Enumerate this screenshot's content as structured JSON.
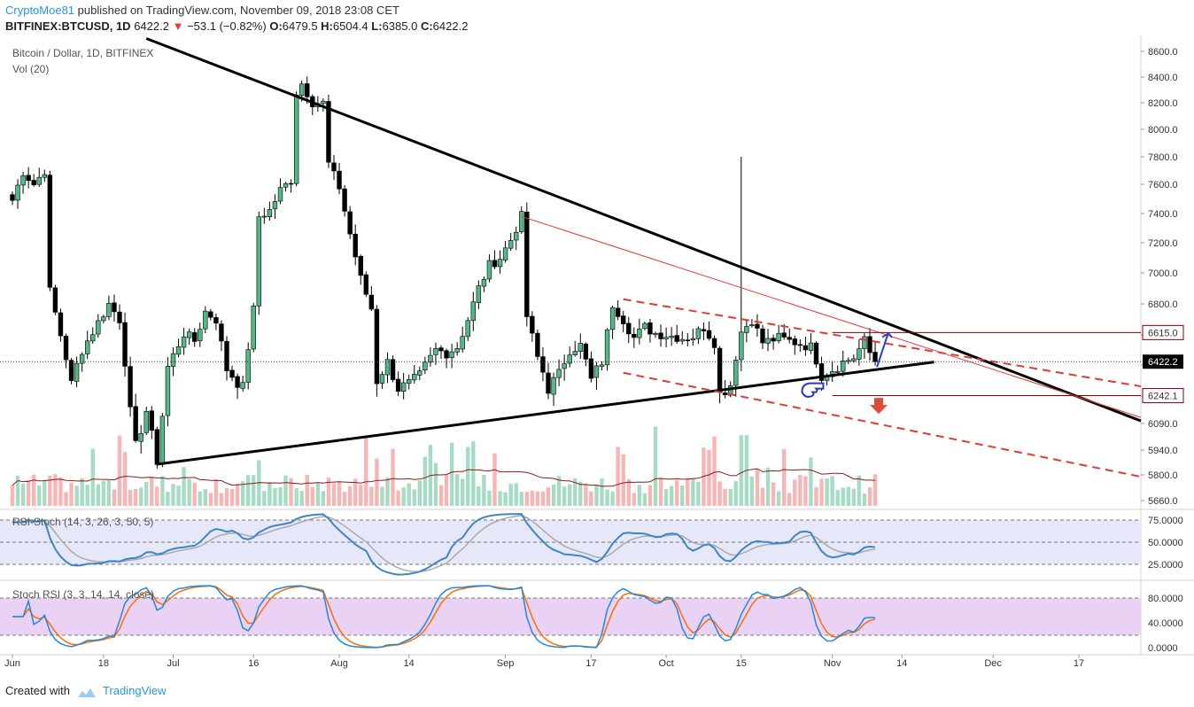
{
  "header": {
    "author": "CryptoMoe81",
    "published_text": "published on TradingView.com, November 09, 2018 23:08 CET"
  },
  "ticker": {
    "symbol": "BITFINEX:BTCUSD, 1D",
    "last": "6422.2",
    "change": "−53.1 (−0.82%)",
    "o_label": "O:",
    "o": "6479.5",
    "h_label": "H:",
    "h": "6504.4",
    "l_label": "L:",
    "l": "6385.0",
    "c_label": "C:",
    "c": "6422.2"
  },
  "footer": {
    "created_with": "Created with",
    "brand": "TradingView"
  },
  "colors": {
    "bull": "#53b987",
    "bear": "#000000",
    "trend_red": "#e53935",
    "trend_black": "#000000",
    "rsi_fill": "#e7e7fa",
    "stoch_fill": "#ead2f5",
    "k_line": "#3d85c6",
    "d_line": "#aaaaaa",
    "orange": "#ff6d00",
    "price_tag": "#000000",
    "level_tag": "#8b0000"
  },
  "chart_data": [
    {
      "type": "candlestick",
      "title": "Bitcoin / Dollar, 1D, BITFINEX",
      "subtitle": "Vol (20)",
      "price_axis": {
        "ticks": [
          "8600.0",
          "8400.0",
          "8200.0",
          "8000.0",
          "7800.0",
          "7600.0",
          "7400.0",
          "7200.0",
          "7000.0",
          "6800.0",
          "6600.0",
          "6400.0",
          "6240.0",
          "6090.0",
          "5940.0",
          "5800.0",
          "5660.0"
        ],
        "last_price_tag": "6422.2",
        "level_tags": [
          "6615.0",
          "6242.1"
        ]
      },
      "time_axis": {
        "ticks": [
          "Jun",
          "18",
          "Jul",
          "16",
          "Aug",
          "14",
          "Sep",
          "17",
          "Oct",
          "15",
          "Nov",
          "14",
          "Dec",
          "17"
        ]
      },
      "close_path": [
        [
          "2018-06-01",
          7490
        ],
        [
          "2018-06-03",
          7690
        ],
        [
          "2018-06-05",
          7600
        ],
        [
          "2018-06-07",
          7700
        ],
        [
          "2018-06-08",
          6880
        ],
        [
          "2018-06-10",
          6600
        ],
        [
          "2018-06-12",
          6300
        ],
        [
          "2018-06-14",
          6500
        ],
        [
          "2018-06-16",
          6620
        ],
        [
          "2018-06-19",
          6800
        ],
        [
          "2018-06-21",
          6700
        ],
        [
          "2018-06-23",
          6150
        ],
        [
          "2018-06-24",
          5960
        ],
        [
          "2018-06-26",
          6160
        ],
        [
          "2018-06-28",
          5880
        ],
        [
          "2018-06-30",
          6390
        ],
        [
          "2018-07-03",
          6610
        ],
        [
          "2018-07-05",
          6560
        ],
        [
          "2018-07-07",
          6750
        ],
        [
          "2018-07-09",
          6700
        ],
        [
          "2018-07-11",
          6380
        ],
        [
          "2018-07-14",
          6280
        ],
        [
          "2018-07-16",
          6760
        ],
        [
          "2018-07-17",
          7380
        ],
        [
          "2018-07-19",
          7420
        ],
        [
          "2018-07-21",
          7560
        ],
        [
          "2018-07-23",
          7630
        ],
        [
          "2018-07-24",
          8280
        ],
        [
          "2018-07-25",
          8350
        ],
        [
          "2018-07-27",
          8200
        ],
        [
          "2018-07-29",
          8200
        ],
        [
          "2018-07-30",
          7750
        ],
        [
          "2018-08-01",
          7580
        ],
        [
          "2018-08-03",
          7260
        ],
        [
          "2018-08-05",
          6960
        ],
        [
          "2018-08-07",
          6770
        ],
        [
          "2018-08-08",
          6320
        ],
        [
          "2018-08-10",
          6420
        ],
        [
          "2018-08-12",
          6280
        ],
        [
          "2018-08-14",
          6300
        ],
        [
          "2018-08-16",
          6340
        ],
        [
          "2018-08-19",
          6500
        ],
        [
          "2018-08-21",
          6480
        ],
        [
          "2018-08-23",
          6520
        ],
        [
          "2018-08-25",
          6700
        ],
        [
          "2018-08-27",
          6900
        ],
        [
          "2018-08-29",
          7050
        ],
        [
          "2018-08-31",
          7100
        ],
        [
          "2018-09-02",
          7220
        ],
        [
          "2018-09-04",
          7380
        ],
        [
          "2018-09-05",
          6720
        ],
        [
          "2018-09-07",
          6450
        ],
        [
          "2018-09-09",
          6280
        ],
        [
          "2018-09-11",
          6350
        ],
        [
          "2018-09-13",
          6500
        ],
        [
          "2018-09-15",
          6530
        ],
        [
          "2018-09-17",
          6320
        ],
        [
          "2018-09-19",
          6420
        ],
        [
          "2018-09-21",
          6800
        ],
        [
          "2018-09-23",
          6700
        ],
        [
          "2018-09-25",
          6580
        ],
        [
          "2018-09-27",
          6650
        ],
        [
          "2018-09-29",
          6610
        ],
        [
          "2018-10-01",
          6600
        ],
        [
          "2018-10-04",
          6580
        ],
        [
          "2018-10-06",
          6590
        ],
        [
          "2018-10-08",
          6650
        ],
        [
          "2018-10-10",
          6550
        ],
        [
          "2018-10-11",
          6250
        ],
        [
          "2018-10-13",
          6300
        ],
        [
          "2018-10-15",
          6620
        ],
        [
          "2018-10-17",
          6700
        ],
        [
          "2018-10-19",
          6550
        ],
        [
          "2018-10-22",
          6580
        ],
        [
          "2018-10-25",
          6550
        ],
        [
          "2018-10-28",
          6520
        ],
        [
          "2018-10-30",
          6350
        ],
        [
          "2018-11-01",
          6380
        ],
        [
          "2018-11-03",
          6420
        ],
        [
          "2018-11-05",
          6450
        ],
        [
          "2018-11-07",
          6560
        ],
        [
          "2018-11-08",
          6480
        ],
        [
          "2018-11-09",
          6422.2
        ]
      ],
      "trendlines": [
        {
          "name": "black-descending",
          "from": [
            "2018-06-26",
            8700
          ],
          "to": [
            "2018-11-30",
            6420
          ]
        },
        {
          "name": "black-ascending",
          "from": [
            "2018-06-28",
            5860
          ],
          "to": [
            "2018-11-20",
            6420
          ]
        },
        {
          "name": "red-channel-top",
          "from": [
            "2018-09-04",
            7380
          ],
          "to": [
            "2018-11-25",
            6440
          ]
        }
      ],
      "horizontal_levels": [
        6615.0,
        6242.1
      ]
    },
    {
      "type": "line",
      "title": "RSI-Stoch (14, 3, 26, 3, 50, 5)",
      "levels": [
        75.0,
        50.0,
        25.0
      ],
      "axis_ticks": [
        "75.0000",
        "50.0000",
        "25.0000"
      ]
    },
    {
      "type": "line",
      "title": "Stoch RSI (3, 3, 14, 14, close)",
      "levels": [
        80.0,
        20.0
      ],
      "axis_ticks": [
        "80.0000",
        "40.0000",
        "0.0000"
      ]
    }
  ]
}
